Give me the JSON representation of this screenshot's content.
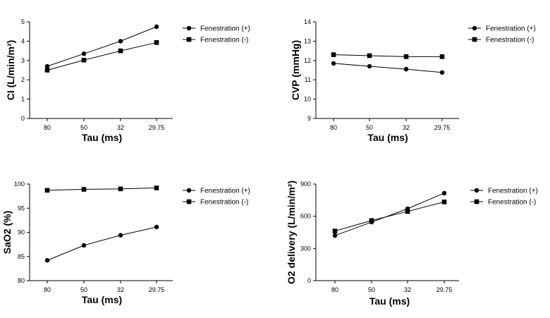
{
  "chart_data": [
    {
      "type": "line",
      "categories": [
        "80",
        "50",
        "32",
        "29.75"
      ],
      "ylabel": "CI (L/min/m²)",
      "xlabel": "Tau (ms)",
      "ylim": [
        0,
        5
      ],
      "yticks": [
        0,
        1,
        2,
        3,
        4,
        5
      ],
      "legend_position": "right",
      "series": [
        {
          "name": "Fenestration (+)",
          "marker": "circle",
          "values": [
            2.7,
            3.35,
            4.0,
            4.75
          ]
        },
        {
          "name": "Fenestration (-)",
          "marker": "square",
          "values": [
            2.5,
            3.02,
            3.5,
            3.93
          ]
        }
      ]
    },
    {
      "type": "line",
      "categories": [
        "80",
        "50",
        "32",
        "29.75"
      ],
      "ylabel": "CVP (mmHg)",
      "xlabel": "Tau (ms)",
      "ylim": [
        9,
        14
      ],
      "yticks": [
        9,
        10,
        11,
        12,
        13,
        14
      ],
      "legend_position": "right",
      "series": [
        {
          "name": "Fenestration (+)",
          "marker": "circle",
          "values": [
            11.85,
            11.7,
            11.55,
            11.38
          ]
        },
        {
          "name": "Fenestration (-)",
          "marker": "square",
          "values": [
            12.3,
            12.25,
            12.2,
            12.2
          ]
        }
      ]
    },
    {
      "type": "line",
      "categories": [
        "80",
        "50",
        "32",
        "29.75"
      ],
      "ylabel": "SaO2 (%)",
      "xlabel": "Tau (ms)",
      "ylim": [
        80,
        100
      ],
      "yticks": [
        80,
        85,
        90,
        95,
        100
      ],
      "legend_position": "right",
      "series": [
        {
          "name": "Fenestration (+)",
          "marker": "circle",
          "values": [
            84.2,
            87.3,
            89.4,
            91.1
          ]
        },
        {
          "name": "Fenestration (-)",
          "marker": "square",
          "values": [
            98.7,
            98.9,
            99.0,
            99.2
          ]
        }
      ]
    },
    {
      "type": "line",
      "categories": [
        "80",
        "50",
        "32",
        "29.75"
      ],
      "ylabel": "O2 delivery (L/min/m²)",
      "xlabel": "Tau (ms)",
      "ylim": [
        0,
        900
      ],
      "yticks": [
        0,
        300,
        600,
        900
      ],
      "legend_position": "right",
      "series": [
        {
          "name": "Fenestration (+)",
          "marker": "circle",
          "values": [
            420,
            545,
            670,
            815
          ]
        },
        {
          "name": "Fenestration (-)",
          "marker": "square",
          "values": [
            462,
            560,
            645,
            733
          ]
        }
      ]
    }
  ]
}
